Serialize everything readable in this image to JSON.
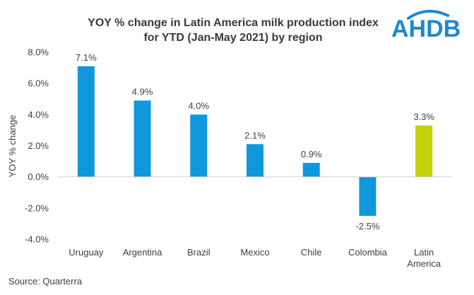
{
  "chart_data": {
    "type": "bar",
    "title_lines": [
      "YOY % change in Latin America milk production index",
      "for YTD (Jan-May 2021) by region"
    ],
    "ylabel": "YOY % change",
    "xlabel": "",
    "ylim": [
      -4.0,
      8.0
    ],
    "yticks": [
      -4.0,
      -2.0,
      0.0,
      2.0,
      4.0,
      6.0,
      8.0
    ],
    "ytick_labels": [
      "-4.0%",
      "-2.0%",
      "0.0%",
      "2.0%",
      "4.0%",
      "6.0%",
      "8.0%"
    ],
    "categories": [
      [
        "Uruguay"
      ],
      [
        "Argentina"
      ],
      [
        "Brazil"
      ],
      [
        "Mexico"
      ],
      [
        "Chile"
      ],
      [
        "Colombia"
      ],
      [
        "Latin",
        "America"
      ]
    ],
    "values": [
      7.1,
      4.9,
      4.0,
      2.1,
      0.9,
      -2.5,
      3.3
    ],
    "data_labels": [
      "7.1%",
      "4.9%",
      "4.0%",
      "2.1%",
      "0.9%",
      "-2.5%",
      "3.3%"
    ],
    "bar_colors": [
      "#0f98dc",
      "#0f98dc",
      "#0f98dc",
      "#0f98dc",
      "#0f98dc",
      "#0f98dc",
      "#c5d20a"
    ],
    "grid": false,
    "legend": "none"
  },
  "logo_text": "AHDB",
  "logo_color": "#1e88d2",
  "source": "Source: Quarterra"
}
